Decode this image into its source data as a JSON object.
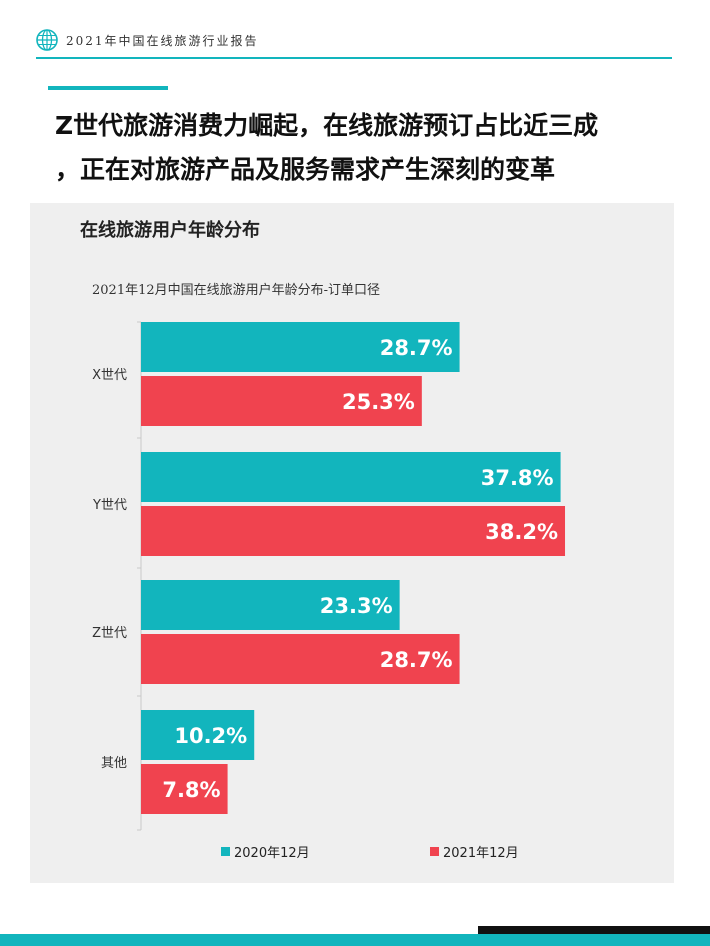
{
  "header": {
    "title": "2021年中国在线旅游行业报告",
    "icon": "globe-icon"
  },
  "headline": {
    "line1": "Z世代旅游消费力崛起，在线旅游预订占比近三成",
    "line2": "，正在对旅游产品及服务需求产生深刻的变革"
  },
  "panel": {
    "title": "在线旅游用户年龄分布"
  },
  "colors": {
    "series_2020": "#12b5bd",
    "series_2021": "#f0434f",
    "accent": "#12b5bd"
  },
  "chart_data": {
    "type": "bar",
    "orientation": "horizontal",
    "title": "2021年12月中国在线旅游用户年龄分布-订单口径",
    "categories": [
      "X世代",
      "Y世代",
      "Z世代",
      "其他"
    ],
    "series": [
      {
        "name": "2020年12月",
        "values": [
          28.7,
          37.8,
          23.3,
          10.2
        ],
        "labels": [
          "28.7%",
          "37.8%",
          "23.3%",
          "10.2%"
        ]
      },
      {
        "name": "2021年12月",
        "values": [
          25.3,
          38.2,
          28.7,
          7.8
        ],
        "labels": [
          "25.3%",
          "38.2%",
          "28.7%",
          "7.8%"
        ]
      }
    ],
    "unit": "%",
    "legend": "bottom"
  }
}
